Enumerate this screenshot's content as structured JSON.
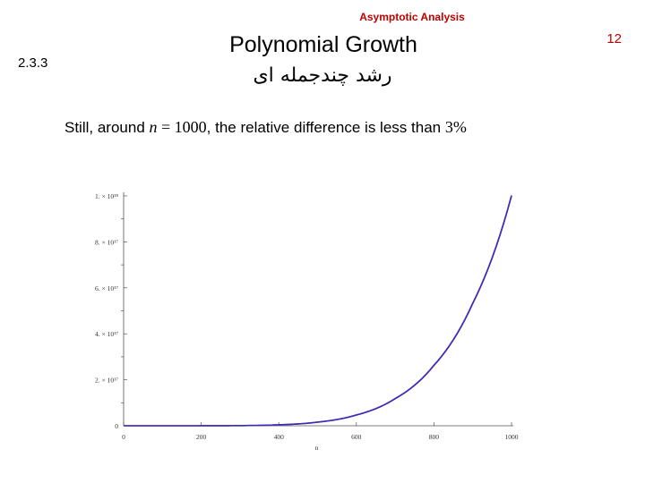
{
  "header": {
    "course": "Asymptotic Analysis",
    "page_number": "12",
    "section": "2.3.3",
    "title": "Polynomial Growth",
    "subtitle": "رشد چندجمله ای"
  },
  "caption": {
    "prefix": "Still, around ",
    "var": "n",
    "eq": " = 1000",
    "middle": ", the relative difference is less than ",
    "pct": "3%"
  },
  "chart_data": {
    "type": "line",
    "xlabel": "n",
    "ylabel": "",
    "xlim": [
      0,
      1000
    ],
    "ylim": [
      0,
      1e+18
    ],
    "x_ticks": [
      0,
      200,
      400,
      600,
      800,
      1000
    ],
    "x_tick_labels": [
      "0",
      "200",
      "400",
      "600",
      "800",
      "1000"
    ],
    "y_ticks": [
      0,
      2e+17,
      4e+17,
      6e+17,
      8e+17,
      1e+18
    ],
    "y_tick_labels": [
      "0",
      "2. × 10¹⁷",
      "4. × 10¹⁷",
      "6. × 10¹⁷",
      "8. × 10¹⁷",
      "1. × 10¹⁸"
    ],
    "series": [
      {
        "color": "#ff3030",
        "x": [
          0,
          100,
          200,
          300,
          400,
          500,
          600,
          700,
          800,
          900,
          1000
        ],
        "y": [
          0,
          1000000000000.0,
          64000000000000.0,
          729000000000000.0,
          4096000000000000.0,
          1.5625e+16,
          4.6656e+16,
          1.17649e+17,
          2.62144e+17,
          5.31441e+17,
          1e+18
        ]
      },
      {
        "color": "#3030c0",
        "x": [
          0,
          100,
          200,
          300,
          400,
          500,
          600,
          700,
          800,
          900,
          1000
        ],
        "y": [
          0,
          1060000000000.0,
          66000000000000.0,
          743000000000000.0,
          4150000000000000.0,
          1.578e+16,
          4.7e+16,
          1.183e+17,
          2.633e+17,
          5.33e+17,
          1.002e+18
        ]
      }
    ]
  }
}
